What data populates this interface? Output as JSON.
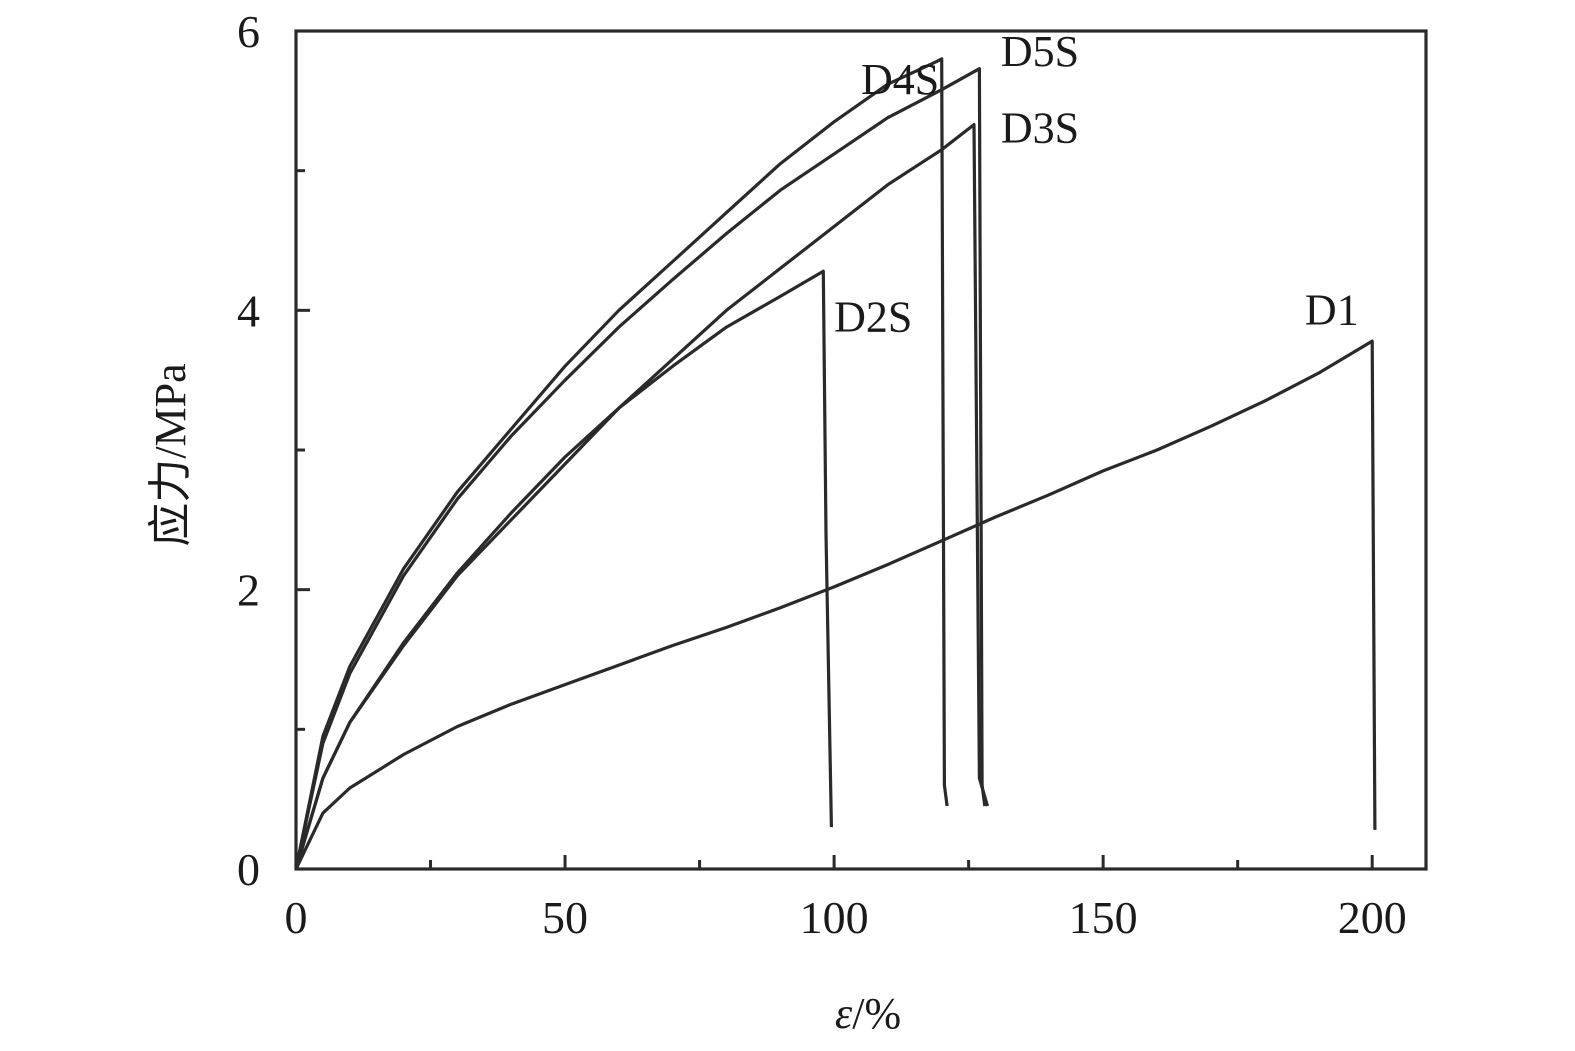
{
  "chart_data": {
    "type": "line",
    "title": "",
    "xlabel_italic": "ε",
    "xlabel_rest": "/%",
    "ylabel": "应力/MPa",
    "xlim": [
      0,
      210
    ],
    "ylim": [
      0,
      6
    ],
    "x_ticks_major": [
      0,
      50,
      100,
      150,
      200
    ],
    "x_ticks_minor": [
      25,
      75,
      125,
      175
    ],
    "y_ticks_major": [
      0,
      2,
      4,
      6
    ],
    "y_ticks_minor": [
      1,
      3,
      5
    ],
    "x_tick_labels": [
      "0",
      "50",
      "100",
      "150",
      "200"
    ],
    "y_tick_labels": [
      "0",
      "2",
      "4",
      "6"
    ],
    "grid": false,
    "legend": "none",
    "series": [
      {
        "name": "D4S",
        "x": [
          0,
          5,
          10,
          20,
          30,
          40,
          50,
          60,
          70,
          80,
          90,
          100,
          110,
          119,
          120,
          120.5,
          121
        ],
        "y": [
          0,
          0.95,
          1.45,
          2.15,
          2.7,
          3.15,
          3.6,
          4.0,
          4.35,
          4.7,
          5.05,
          5.35,
          5.62,
          5.78,
          5.8,
          0.6,
          0.45
        ]
      },
      {
        "name": "D5S",
        "x": [
          0,
          5,
          10,
          20,
          30,
          40,
          50,
          60,
          70,
          80,
          90,
          100,
          110,
          120,
          127,
          127.5,
          128
        ],
        "y": [
          0,
          0.9,
          1.4,
          2.1,
          2.65,
          3.1,
          3.5,
          3.88,
          4.22,
          4.55,
          4.86,
          5.12,
          5.38,
          5.58,
          5.73,
          0.6,
          0.45
        ]
      },
      {
        "name": "D3S",
        "x": [
          0,
          5,
          10,
          20,
          30,
          40,
          50,
          60,
          70,
          80,
          90,
          100,
          110,
          120,
          126,
          127,
          128.5
        ],
        "y": [
          0,
          0.65,
          1.05,
          1.6,
          2.1,
          2.5,
          2.9,
          3.3,
          3.65,
          4.0,
          4.3,
          4.6,
          4.9,
          5.15,
          5.33,
          0.65,
          0.45
        ]
      },
      {
        "name": "D2S",
        "x": [
          0,
          5,
          10,
          20,
          30,
          40,
          50,
          60,
          70,
          80,
          90,
          98,
          98.5,
          99.5
        ],
        "y": [
          0,
          0.65,
          1.05,
          1.62,
          2.12,
          2.55,
          2.95,
          3.3,
          3.6,
          3.88,
          4.1,
          4.28,
          2.4,
          0.3
        ]
      },
      {
        "name": "D1",
        "x": [
          0,
          5,
          10,
          20,
          30,
          40,
          50,
          60,
          70,
          80,
          90,
          100,
          110,
          120,
          130,
          140,
          150,
          160,
          170,
          180,
          190,
          200,
          200.5
        ],
        "y": [
          0,
          0.4,
          0.58,
          0.82,
          1.02,
          1.18,
          1.32,
          1.46,
          1.6,
          1.73,
          1.87,
          2.02,
          2.18,
          2.35,
          2.52,
          2.68,
          2.85,
          3.0,
          3.17,
          3.35,
          3.55,
          3.78,
          0.28
        ]
      }
    ],
    "annotations": [
      {
        "text": "D4S",
        "x": 105,
        "y": 5.55
      },
      {
        "text": "D5S",
        "x": 131,
        "y": 5.75
      },
      {
        "text": "D3S",
        "x": 131,
        "y": 5.2
      },
      {
        "text": "D2S",
        "x": 100,
        "y": 3.85
      },
      {
        "text": "D1",
        "x": 187.5,
        "y": 3.9
      }
    ]
  }
}
